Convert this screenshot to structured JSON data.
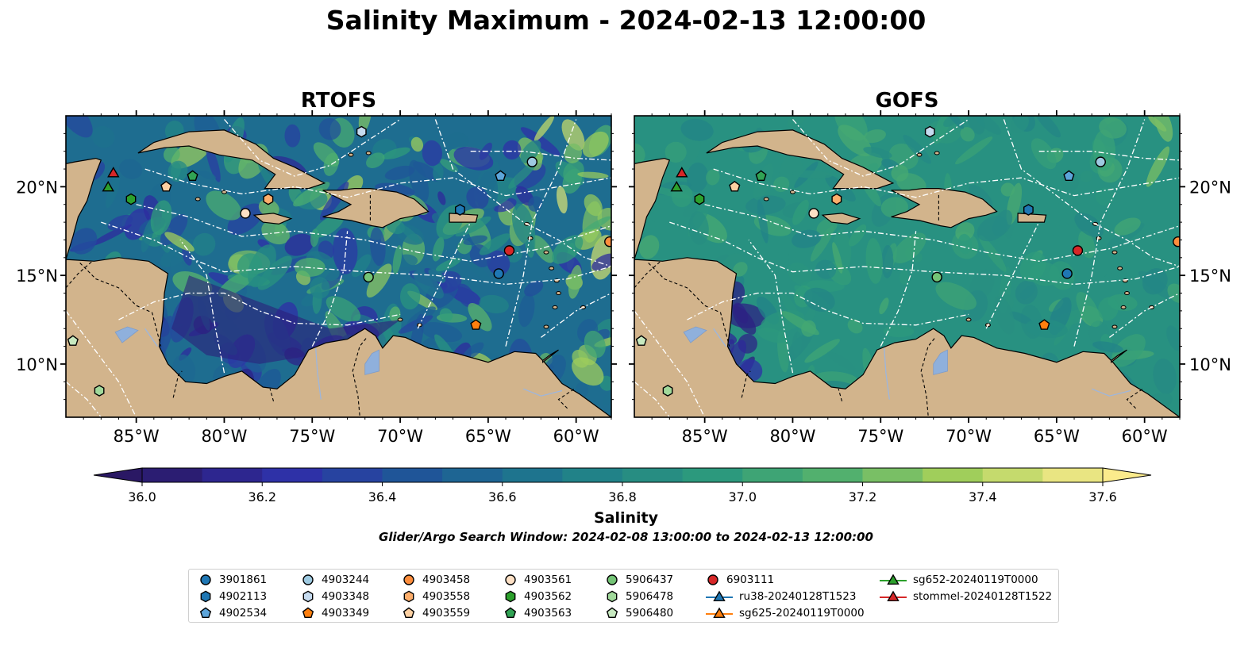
{
  "title": "Salinity Maximum - 2024-02-13 12:00:00",
  "panels": [
    {
      "title": "RTOFS"
    },
    {
      "title": "GOFS"
    }
  ],
  "axes": {
    "lon_ticks": [
      "85°W",
      "80°W",
      "75°W",
      "70°W",
      "65°W",
      "60°W"
    ],
    "lat_ticks": [
      "20°N",
      "15°N",
      "10°N"
    ]
  },
  "colorbar": {
    "label": "Salinity",
    "ticks": [
      "36.0",
      "36.2",
      "36.4",
      "36.6",
      "36.8",
      "37.0",
      "37.2",
      "37.4",
      "37.6"
    ],
    "colormap": "haline"
  },
  "search_window": "Glider/Argo Search Window: 2024-02-08 13:00:00 to 2024-02-13 12:00:00",
  "colors": {
    "land": "#d2b48c",
    "lakes": "#8fb0dc",
    "boundaries": "#ffffff"
  },
  "legend": [
    {
      "label": "3901861",
      "marker": "circle",
      "color": "#1f77b4"
    },
    {
      "label": "4902113",
      "marker": "hexagon",
      "color": "#1f77b4"
    },
    {
      "label": "4902534",
      "marker": "pentagon",
      "color": "#5da5da"
    },
    {
      "label": "4903244",
      "marker": "circle",
      "color": "#9ecae1"
    },
    {
      "label": "4903348",
      "marker": "hexagon",
      "color": "#c6dbef"
    },
    {
      "label": "4903349",
      "marker": "pentagon",
      "color": "#ff7f0e"
    },
    {
      "label": "4903458",
      "marker": "circle",
      "color": "#fd8d3c"
    },
    {
      "label": "4903558",
      "marker": "hexagon",
      "color": "#fdae6b"
    },
    {
      "label": "4903559",
      "marker": "pentagon",
      "color": "#fdd0a2"
    },
    {
      "label": "4903561",
      "marker": "circle",
      "color": "#fde0c5"
    },
    {
      "label": "4903562",
      "marker": "hexagon",
      "color": "#2ca02c"
    },
    {
      "label": "4903563",
      "marker": "pentagon",
      "color": "#31a354"
    },
    {
      "label": "5906437",
      "marker": "circle",
      "color": "#74c476"
    },
    {
      "label": "5906478",
      "marker": "hexagon",
      "color": "#a1d99b"
    },
    {
      "label": "5906480",
      "marker": "pentagon",
      "color": "#c7e9c0"
    },
    {
      "label": "6903111",
      "marker": "circle",
      "color": "#d62728"
    },
    {
      "label": "ru38-20240128T1523",
      "marker": "triangle",
      "color": "#1f77b4"
    },
    {
      "label": "sg625-20240119T0000",
      "marker": "triangle",
      "color": "#ff7f0e"
    },
    {
      "label": "sg652-20240119T0000",
      "marker": "triangle",
      "color": "#2ca02c"
    },
    {
      "label": "stommel-20240128T1522",
      "marker": "triangle",
      "color": "#d62728"
    }
  ],
  "chart_data": {
    "type": "heatmap",
    "variable": "Salinity",
    "lon_range": [
      -89,
      -58
    ],
    "lat_range": [
      7,
      24
    ],
    "color_range": [
      36.0,
      37.6
    ],
    "markers": [
      {
        "id": "3901861",
        "lon": -64.4,
        "lat": 15.1
      },
      {
        "id": "4902113",
        "lon": -66.6,
        "lat": 18.7
      },
      {
        "id": "4902534",
        "lon": -64.3,
        "lat": 20.6
      },
      {
        "id": "4903244",
        "lon": -62.5,
        "lat": 21.4
      },
      {
        "id": "4903348",
        "lon": -72.2,
        "lat": 23.1
      },
      {
        "id": "4903349",
        "lon": -65.7,
        "lat": 12.2
      },
      {
        "id": "4903458",
        "lon": -58.1,
        "lat": 16.9
      },
      {
        "id": "4903558",
        "lon": -77.5,
        "lat": 19.3
      },
      {
        "id": "4903559",
        "lon": -83.3,
        "lat": 20.0
      },
      {
        "id": "4903561",
        "lon": -78.8,
        "lat": 18.5
      },
      {
        "id": "4903562",
        "lon": -85.3,
        "lat": 19.3
      },
      {
        "id": "4903563",
        "lon": -81.8,
        "lat": 20.6
      },
      {
        "id": "5906437",
        "lon": -71.8,
        "lat": 14.9
      },
      {
        "id": "5906478",
        "lon": -87.1,
        "lat": 8.5
      },
      {
        "id": "5906480",
        "lon": -88.6,
        "lat": 11.3
      },
      {
        "id": "6903111",
        "lon": -63.8,
        "lat": 16.4
      },
      {
        "id": "sg652-20240119T0000",
        "lon": -86.6,
        "lat": 20.0
      },
      {
        "id": "stommel-20240128T1522",
        "lon": -86.3,
        "lat": 20.8
      }
    ]
  }
}
